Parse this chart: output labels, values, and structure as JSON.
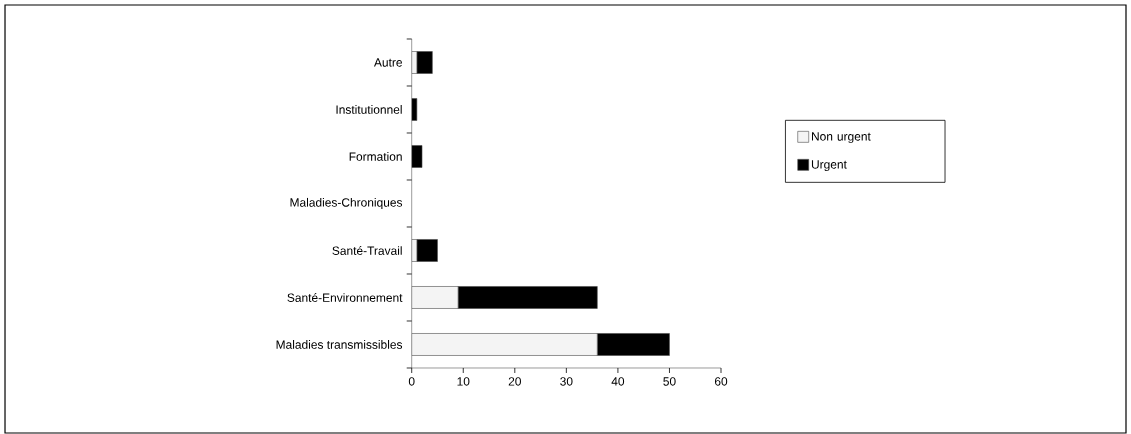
{
  "chart_data": {
    "type": "bar",
    "orientation": "horizontal",
    "stacked": true,
    "categories": [
      "Autre",
      "Institutionnel",
      "Formation",
      "Maladies-Chroniques",
      "Santé-Travail",
      "Santé-Environnement",
      "Maladies transmissibles"
    ],
    "series": [
      {
        "name": "Non urgent",
        "color": "#f4f4f4",
        "values": [
          1,
          0,
          0,
          0,
          1,
          9,
          36
        ]
      },
      {
        "name": "Urgent",
        "color": "#000000",
        "values": [
          3,
          1,
          2,
          0,
          4,
          27,
          14
        ]
      }
    ],
    "xlim": [
      0,
      60
    ],
    "xticks": [
      0,
      10,
      20,
      30,
      40,
      50,
      60
    ],
    "legend": "right",
    "grid": false
  }
}
